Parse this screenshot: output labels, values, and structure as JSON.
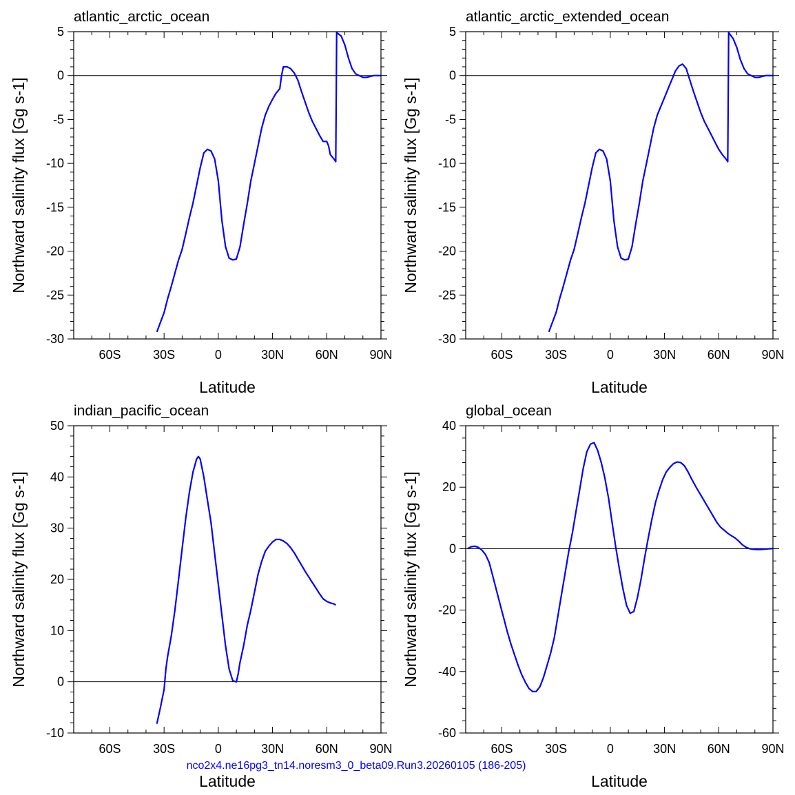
{
  "footer_text": "nco2x4.ne16pg3_tn14.noresm3_0_beta09.Run3.20260105 (186-205)",
  "colors": {
    "line": "#0000ff",
    "axes": "#000000",
    "zero": "#000000"
  },
  "chart_data": [
    {
      "type": "line",
      "title": "atlantic_arctic_ocean",
      "xlabel": "Latitude",
      "ylabel": "Northward salinity flux [Gg s-1]",
      "xlim": [
        -80,
        90
      ],
      "ylim": [
        -30,
        5
      ],
      "xticks": [
        {
          "value": -60,
          "label": "60S"
        },
        {
          "value": -30,
          "label": "30S"
        },
        {
          "value": 0,
          "label": "0"
        },
        {
          "value": 30,
          "label": "30N"
        },
        {
          "value": 60,
          "label": "60N"
        },
        {
          "value": 90,
          "label": "90N"
        }
      ],
      "yticks": [
        {
          "value": 5,
          "label": "5"
        },
        {
          "value": 0,
          "label": "0"
        },
        {
          "value": -5,
          "label": "-5"
        },
        {
          "value": -10,
          "label": "-10"
        },
        {
          "value": -15,
          "label": "-15"
        },
        {
          "value": -20,
          "label": "-20"
        },
        {
          "value": -25,
          "label": "-25"
        },
        {
          "value": -30,
          "label": "-30"
        }
      ],
      "zero_line": true,
      "series": [
        {
          "x": [
            -34,
            -30,
            -28,
            -26,
            -24,
            -22,
            -20,
            -18,
            -16,
            -14,
            -12,
            -10,
            -8,
            -6,
            -4,
            -2,
            0,
            2,
            4,
            6,
            8,
            10,
            12,
            14,
            16,
            18,
            20,
            22,
            24,
            26,
            28,
            30,
            32,
            34,
            35,
            36,
            37,
            38,
            40,
            42,
            44,
            46,
            48,
            50,
            52,
            54,
            56,
            58,
            60,
            61,
            62,
            64,
            65,
            65.5,
            68,
            70,
            72,
            74,
            76,
            78,
            80,
            82,
            84,
            86,
            88,
            90
          ],
          "y": [
            -29.2,
            -27.0,
            -25.4,
            -24.0,
            -22.5,
            -21.0,
            -19.8,
            -18.0,
            -16.2,
            -14.5,
            -12.5,
            -10.5,
            -8.8,
            -8.4,
            -8.6,
            -9.5,
            -12.0,
            -16.5,
            -19.5,
            -20.8,
            -21.0,
            -20.9,
            -19.5,
            -17.0,
            -14.6,
            -12.0,
            -10.0,
            -8.0,
            -6.0,
            -4.5,
            -3.5,
            -2.7,
            -2.0,
            -1.5,
            0.0,
            1.0,
            1.0,
            1.0,
            0.8,
            0.3,
            -0.5,
            -1.8,
            -3.0,
            -4.2,
            -5.2,
            -6.0,
            -6.8,
            -7.5,
            -7.5,
            -8.0,
            -9.0,
            -9.5,
            -9.8,
            4.9,
            4.5,
            3.5,
            2.0,
            0.8,
            0.2,
            0.0,
            -0.2,
            -0.2,
            -0.1,
            0.0,
            0.0,
            0.0
          ]
        }
      ]
    },
    {
      "type": "line",
      "title": "atlantic_arctic_extended_ocean",
      "xlabel": "Latitude",
      "ylabel": "Northward salinity flux [Gg s-1]",
      "xlim": [
        -80,
        90
      ],
      "ylim": [
        -30,
        5
      ],
      "xticks": [
        {
          "value": -60,
          "label": "60S"
        },
        {
          "value": -30,
          "label": "30S"
        },
        {
          "value": 0,
          "label": "0"
        },
        {
          "value": 30,
          "label": "30N"
        },
        {
          "value": 60,
          "label": "60N"
        },
        {
          "value": 90,
          "label": "90N"
        }
      ],
      "yticks": [
        {
          "value": 5,
          "label": "5"
        },
        {
          "value": 0,
          "label": "0"
        },
        {
          "value": -5,
          "label": "-5"
        },
        {
          "value": -10,
          "label": "-10"
        },
        {
          "value": -15,
          "label": "-15"
        },
        {
          "value": -20,
          "label": "-20"
        },
        {
          "value": -25,
          "label": "-25"
        },
        {
          "value": -30,
          "label": "-30"
        }
      ],
      "zero_line": true,
      "series": [
        {
          "x": [
            -34,
            -30,
            -28,
            -26,
            -24,
            -22,
            -20,
            -18,
            -16,
            -14,
            -12,
            -10,
            -8,
            -6,
            -4,
            -2,
            0,
            2,
            4,
            6,
            8,
            10,
            12,
            14,
            16,
            18,
            20,
            22,
            24,
            26,
            28,
            30,
            32,
            34,
            36,
            38,
            40,
            42,
            44,
            46,
            48,
            50,
            52,
            54,
            56,
            58,
            60,
            62,
            64,
            65,
            65.5,
            68,
            70,
            72,
            74,
            76,
            78,
            80,
            82,
            84,
            86,
            88,
            90
          ],
          "y": [
            -29.2,
            -27.0,
            -25.4,
            -24.0,
            -22.5,
            -21.0,
            -19.8,
            -18.0,
            -16.2,
            -14.5,
            -12.5,
            -10.5,
            -8.8,
            -8.4,
            -8.6,
            -9.5,
            -12.0,
            -16.5,
            -19.5,
            -20.8,
            -21.0,
            -20.9,
            -19.5,
            -17.0,
            -14.6,
            -12.0,
            -10.0,
            -8.0,
            -6.0,
            -4.5,
            -3.5,
            -2.5,
            -1.5,
            -0.5,
            0.5,
            1.1,
            1.3,
            0.8,
            -0.5,
            -1.8,
            -3.0,
            -4.2,
            -5.2,
            -6.0,
            -6.8,
            -7.6,
            -8.4,
            -9.0,
            -9.5,
            -9.8,
            4.9,
            4.2,
            3.2,
            1.8,
            0.8,
            0.2,
            0.0,
            -0.2,
            -0.2,
            -0.1,
            0.0,
            0.0,
            0.0
          ]
        }
      ]
    },
    {
      "type": "line",
      "title": "indian_pacific_ocean",
      "xlabel": "Latitude",
      "ylabel": "Northward salinity flux [Gg s-1]",
      "xlim": [
        -80,
        90
      ],
      "ylim": [
        -10,
        50
      ],
      "xticks": [
        {
          "value": -60,
          "label": "60S"
        },
        {
          "value": -30,
          "label": "30S"
        },
        {
          "value": 0,
          "label": "0"
        },
        {
          "value": 30,
          "label": "30N"
        },
        {
          "value": 60,
          "label": "60N"
        },
        {
          "value": 90,
          "label": "90N"
        }
      ],
      "yticks": [
        {
          "value": 50,
          "label": "50"
        },
        {
          "value": 40,
          "label": "40"
        },
        {
          "value": 30,
          "label": "30"
        },
        {
          "value": 20,
          "label": "20"
        },
        {
          "value": 10,
          "label": "10"
        },
        {
          "value": 0,
          "label": "0"
        },
        {
          "value": -10,
          "label": "-10"
        }
      ],
      "zero_line": true,
      "series": [
        {
          "x": [
            -34,
            -32,
            -30,
            -29,
            -28,
            -26,
            -24,
            -22,
            -20,
            -18,
            -16,
            -14,
            -12,
            -11,
            -10,
            -8,
            -6,
            -4,
            -2,
            0,
            2,
            4,
            6,
            8,
            10,
            11,
            12,
            14,
            16,
            18,
            20,
            22,
            24,
            26,
            28,
            30,
            32,
            34,
            36,
            38,
            40,
            42,
            44,
            46,
            48,
            50,
            52,
            54,
            56,
            58,
            60,
            62,
            64,
            65
          ],
          "y": [
            -8.2,
            -5.0,
            -1.5,
            2.5,
            5.0,
            9.0,
            14.0,
            20.0,
            26.0,
            32.0,
            37.0,
            41.0,
            43.5,
            44.0,
            43.5,
            40.0,
            35.5,
            31.0,
            25.0,
            19.0,
            13.0,
            7.0,
            2.5,
            0.2,
            0.0,
            1.5,
            3.8,
            7.0,
            11.0,
            14.0,
            17.5,
            21.0,
            23.5,
            25.5,
            26.5,
            27.3,
            27.8,
            27.8,
            27.5,
            27.0,
            26.2,
            25.2,
            24.0,
            22.8,
            21.6,
            20.5,
            19.4,
            18.3,
            17.2,
            16.2,
            15.7,
            15.4,
            15.2,
            15.0
          ]
        }
      ]
    },
    {
      "type": "line",
      "title": "global_ocean",
      "xlabel": "Latitude",
      "ylabel": "Northward salinity flux [Gg s-1]",
      "xlim": [
        -80,
        90
      ],
      "ylim": [
        -60,
        40
      ],
      "xticks": [
        {
          "value": -60,
          "label": "60S"
        },
        {
          "value": -30,
          "label": "30S"
        },
        {
          "value": 0,
          "label": "0"
        },
        {
          "value": 30,
          "label": "30N"
        },
        {
          "value": 60,
          "label": "60N"
        },
        {
          "value": 90,
          "label": "90N"
        }
      ],
      "yticks": [
        {
          "value": 40,
          "label": "40"
        },
        {
          "value": 20,
          "label": "20"
        },
        {
          "value": 0,
          "label": "0"
        },
        {
          "value": -20,
          "label": "-20"
        },
        {
          "value": -40,
          "label": "-40"
        },
        {
          "value": -60,
          "label": "-60"
        }
      ],
      "zero_line": true,
      "series": [
        {
          "x": [
            -79,
            -77,
            -75,
            -73,
            -71,
            -69,
            -67,
            -65,
            -63,
            -61,
            -59,
            -57,
            -55,
            -53,
            -51,
            -49,
            -47,
            -45,
            -43,
            -41,
            -39,
            -37,
            -35,
            -33,
            -31,
            -29,
            -27,
            -25,
            -23,
            -21,
            -19,
            -17,
            -15,
            -13,
            -11,
            -9,
            -7,
            -5,
            -3,
            -1,
            1,
            3,
            5,
            7,
            9,
            11,
            13,
            15,
            17,
            19,
            21,
            23,
            25,
            27,
            29,
            31,
            33,
            35,
            37,
            39,
            41,
            43,
            45,
            47,
            49,
            51,
            53,
            55,
            57,
            59,
            61,
            63,
            65,
            67,
            69,
            71,
            73,
            75,
            77,
            79,
            81,
            83,
            85,
            87,
            89,
            90
          ],
          "y": [
            0.0,
            0.6,
            0.8,
            0.4,
            -0.5,
            -2.0,
            -4.5,
            -9.0,
            -13.5,
            -18.0,
            -22.5,
            -27.0,
            -31.0,
            -34.5,
            -38.0,
            -41.0,
            -43.5,
            -45.5,
            -46.5,
            -46.5,
            -45.0,
            -42.0,
            -38.0,
            -34.0,
            -29.0,
            -22.0,
            -15.0,
            -8.0,
            -1.0,
            5.0,
            12.0,
            19.0,
            26.0,
            31.5,
            34.0,
            34.5,
            32.0,
            28.0,
            23.0,
            16.5,
            8.5,
            0.5,
            -6.5,
            -13.0,
            -18.5,
            -21.0,
            -20.5,
            -16.0,
            -10.0,
            -3.0,
            3.5,
            9.5,
            15.0,
            19.0,
            22.5,
            25.0,
            26.5,
            27.7,
            28.2,
            28.0,
            27.0,
            25.0,
            22.7,
            20.5,
            18.5,
            16.5,
            14.5,
            12.5,
            10.5,
            8.5,
            7.0,
            6.0,
            5.0,
            4.2,
            3.5,
            2.5,
            1.3,
            0.5,
            0.0,
            -0.2,
            -0.3,
            -0.3,
            -0.2,
            -0.1,
            0.0,
            0.0
          ]
        }
      ]
    }
  ]
}
